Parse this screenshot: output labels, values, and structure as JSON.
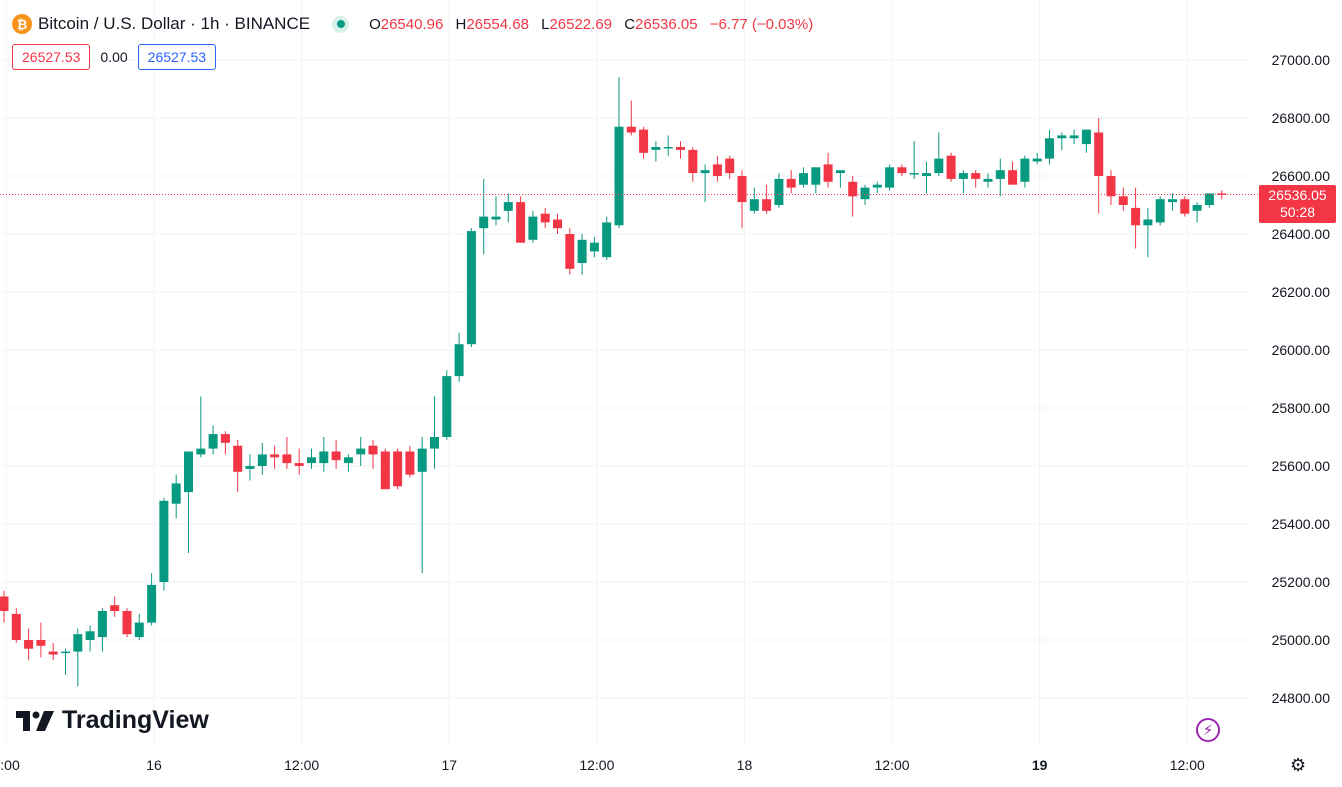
{
  "header": {
    "coin_icon": "bitcoin-icon",
    "coin_symbol": "₿",
    "title": "Bitcoin / U.S. Dollar · 1h · BINANCE",
    "open_label": "O",
    "open": "26540.96",
    "high_label": "H",
    "high": "26554.68",
    "low_label": "L",
    "low": "26522.69",
    "close_label": "C",
    "close": "26536.05",
    "change": "−6.77 (−0.03%)"
  },
  "trade": {
    "sell": "26527.53",
    "spread": "0.00",
    "buy": "26527.53"
  },
  "branding": {
    "logo_text": "TradingView",
    "logo_icon": "tradingview-logo-icon"
  },
  "price_tag": {
    "price": "26536.05",
    "countdown": "50:28"
  },
  "colors": {
    "up": "#089981",
    "down": "#f23645",
    "grid": "#f0f3fa",
    "text": "#131722"
  },
  "icons": {
    "flash": "lightning-icon",
    "settings": "gear-icon"
  },
  "chart_data": {
    "type": "candlestick",
    "interval": "1h",
    "y_ticks": [
      "27000.00",
      "26800.00",
      "26600.00",
      "26400.00",
      "26200.00",
      "26000.00",
      "25800.00",
      "25600.00",
      "25400.00",
      "25200.00",
      "25000.00",
      "24800.00"
    ],
    "ylim": [
      24700,
      27080
    ],
    "x_ticks": [
      {
        "label": ":00",
        "index": 0.2
      },
      {
        "label": "16",
        "index": 12.2
      },
      {
        "label": "12:00",
        "index": 24.2
      },
      {
        "label": "17",
        "index": 36.2
      },
      {
        "label": "12:00",
        "index": 48.2
      },
      {
        "label": "18",
        "index": 60.2
      },
      {
        "label": "12:00",
        "index": 72.2
      },
      {
        "label": "19",
        "index": 84.2,
        "bold": true
      },
      {
        "label": "12:00",
        "index": 96.2
      }
    ],
    "current_price": 26536.05,
    "candles": [
      [
        25150,
        25170,
        25060,
        25100
      ],
      [
        25090,
        25110,
        24990,
        25000
      ],
      [
        25000,
        25040,
        24930,
        24970
      ],
      [
        25000,
        25060,
        24940,
        24980
      ],
      [
        24960,
        24990,
        24930,
        24950
      ],
      [
        24960,
        24970,
        24880,
        24960
      ],
      [
        24960,
        25040,
        24840,
        25020
      ],
      [
        25000,
        25050,
        24960,
        25030
      ],
      [
        25010,
        25110,
        24960,
        25100
      ],
      [
        25120,
        25150,
        25080,
        25100
      ],
      [
        25100,
        25110,
        25010,
        25020
      ],
      [
        25010,
        25090,
        25000,
        25060
      ],
      [
        25060,
        25230,
        25050,
        25190
      ],
      [
        25200,
        25490,
        25170,
        25480
      ],
      [
        25470,
        25570,
        25420,
        25540
      ],
      [
        25510,
        25650,
        25300,
        25650
      ],
      [
        25640,
        25840,
        25630,
        25660
      ],
      [
        25660,
        25740,
        25640,
        25710
      ],
      [
        25710,
        25720,
        25640,
        25680
      ],
      [
        25670,
        25690,
        25510,
        25580
      ],
      [
        25590,
        25640,
        25550,
        25600
      ],
      [
        25600,
        25680,
        25570,
        25640
      ],
      [
        25640,
        25670,
        25590,
        25630
      ],
      [
        25640,
        25700,
        25590,
        25610
      ],
      [
        25610,
        25660,
        25570,
        25600
      ],
      [
        25610,
        25660,
        25590,
        25630
      ],
      [
        25610,
        25700,
        25580,
        25650
      ],
      [
        25650,
        25690,
        25590,
        25620
      ],
      [
        25610,
        25640,
        25580,
        25630
      ],
      [
        25640,
        25700,
        25600,
        25660
      ],
      [
        25670,
        25690,
        25590,
        25640
      ],
      [
        25650,
        25660,
        25520,
        25520
      ],
      [
        25650,
        25660,
        25520,
        25530
      ],
      [
        25650,
        25670,
        25560,
        25570
      ],
      [
        25580,
        25700,
        25230,
        25660
      ],
      [
        25660,
        25840,
        25590,
        25700
      ],
      [
        25700,
        25930,
        25690,
        25910
      ],
      [
        25910,
        26060,
        25890,
        26020
      ],
      [
        26020,
        26420,
        26010,
        26410
      ],
      [
        26420,
        26590,
        26330,
        26460
      ],
      [
        26450,
        26530,
        26430,
        26460
      ],
      [
        26480,
        26540,
        26440,
        26510
      ],
      [
        26510,
        26530,
        26370,
        26370
      ],
      [
        26380,
        26480,
        26370,
        26460
      ],
      [
        26470,
        26490,
        26420,
        26440
      ],
      [
        26450,
        26470,
        26400,
        26420
      ],
      [
        26400,
        26420,
        26260,
        26280
      ],
      [
        26300,
        26400,
        26260,
        26380
      ],
      [
        26340,
        26390,
        26320,
        26370
      ],
      [
        26320,
        26460,
        26310,
        26440
      ],
      [
        26430,
        26940,
        26420,
        26770
      ],
      [
        26770,
        26860,
        26740,
        26750
      ],
      [
        26760,
        26770,
        26660,
        26680
      ],
      [
        26690,
        26720,
        26650,
        26700
      ],
      [
        26700,
        26740,
        26670,
        26700
      ],
      [
        26700,
        26720,
        26660,
        26690
      ],
      [
        26690,
        26700,
        26580,
        26610
      ],
      [
        26610,
        26640,
        26510,
        26620
      ],
      [
        26640,
        26670,
        26580,
        26600
      ],
      [
        26660,
        26670,
        26590,
        26610
      ],
      [
        26600,
        26620,
        26420,
        26510
      ],
      [
        26480,
        26560,
        26470,
        26520
      ],
      [
        26520,
        26570,
        26470,
        26480
      ],
      [
        26500,
        26610,
        26490,
        26590
      ],
      [
        26590,
        26620,
        26540,
        26560
      ],
      [
        26570,
        26630,
        26560,
        26610
      ],
      [
        26570,
        26620,
        26540,
        26630
      ],
      [
        26640,
        26680,
        26560,
        26580
      ],
      [
        26610,
        26620,
        26560,
        26620
      ],
      [
        26580,
        26600,
        26460,
        26530
      ],
      [
        26520,
        26570,
        26500,
        26560
      ],
      [
        26560,
        26580,
        26540,
        26570
      ],
      [
        26560,
        26640,
        26550,
        26630
      ],
      [
        26630,
        26640,
        26600,
        26610
      ],
      [
        26610,
        26720,
        26590,
        26610
      ],
      [
        26600,
        26650,
        26540,
        26610
      ],
      [
        26610,
        26750,
        26600,
        26660
      ],
      [
        26670,
        26680,
        26580,
        26590
      ],
      [
        26590,
        26620,
        26540,
        26610
      ],
      [
        26610,
        26620,
        26560,
        26590
      ],
      [
        26580,
        26610,
        26560,
        26590
      ],
      [
        26590,
        26660,
        26530,
        26620
      ],
      [
        26620,
        26650,
        26570,
        26570
      ],
      [
        26580,
        26670,
        26560,
        26660
      ],
      [
        26650,
        26680,
        26640,
        26660
      ],
      [
        26660,
        26760,
        26640,
        26730
      ],
      [
        26730,
        26750,
        26690,
        26740
      ],
      [
        26730,
        26760,
        26710,
        26740
      ],
      [
        26710,
        26760,
        26680,
        26760
      ],
      [
        26750,
        26800,
        26470,
        26600
      ],
      [
        26600,
        26620,
        26500,
        26530
      ],
      [
        26530,
        26560,
        26480,
        26500
      ],
      [
        26490,
        26560,
        26350,
        26430
      ],
      [
        26430,
        26490,
        26320,
        26450
      ],
      [
        26440,
        26530,
        26430,
        26520
      ],
      [
        26510,
        26540,
        26480,
        26520
      ],
      [
        26520,
        26530,
        26460,
        26470
      ],
      [
        26480,
        26510,
        26440,
        26500
      ],
      [
        26500,
        26540,
        26490,
        26540
      ],
      [
        26540,
        26550,
        26520,
        26536
      ]
    ]
  }
}
